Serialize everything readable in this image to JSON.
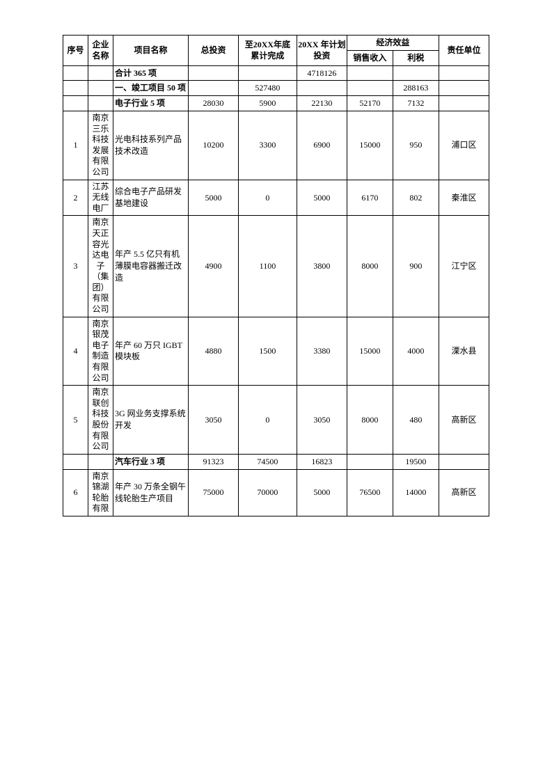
{
  "headers": {
    "seq": "序号",
    "company": "企业名称",
    "project": "项目名称",
    "totalInvest": "总投资",
    "complete": "至20XX年底\n累计完成",
    "planInvest": "20XX 年计划投资",
    "benefit": "经济效益",
    "sales": "销售收入",
    "tax": "利税",
    "responsible": "责任单位"
  },
  "sections": {
    "total": {
      "label": "合计 365 项",
      "planInvest": "4718126"
    },
    "complete50": {
      "label": "一、竣工项目 50 项",
      "complete": "527480",
      "tax": "288163"
    },
    "electronic": {
      "label": "电子行业 5 项",
      "totalInvest": "28030",
      "complete": "5900",
      "planInvest": "22130",
      "sales": "52170",
      "tax": "7132"
    },
    "auto": {
      "label": "汽车行业 3 项",
      "totalInvest": "91323",
      "complete": "74500",
      "planInvest": "16823",
      "tax": "19500"
    }
  },
  "rows": [
    {
      "seq": "1",
      "company": "南京三乐科技发展有限公司",
      "project": "光电科技系列产品技术改造",
      "totalInvest": "10200",
      "complete": "3300",
      "planInvest": "6900",
      "sales": "15000",
      "tax": "950",
      "responsible": "浦口区"
    },
    {
      "seq": "2",
      "company": "江苏无线电厂",
      "project": "综合电子产品研发基地建设",
      "totalInvest": "5000",
      "complete": "0",
      "planInvest": "5000",
      "sales": "6170",
      "tax": "802",
      "responsible": "秦淮区"
    },
    {
      "seq": "3",
      "company": "南京天正容光达电子（集团）有限公司",
      "project": "年产 5.5 亿只有机薄膜电容器搬迁改造",
      "totalInvest": "4900",
      "complete": "1100",
      "planInvest": "3800",
      "sales": "8000",
      "tax": "900",
      "responsible": "江宁区"
    },
    {
      "seq": "4",
      "company": "南京银茂电子制造有限公司",
      "project": "年产 60 万只 IGBT 模块板",
      "totalInvest": "4880",
      "complete": "1500",
      "planInvest": "3380",
      "sales": "15000",
      "tax": "4000",
      "responsible": "溧水县"
    },
    {
      "seq": "5",
      "company": "南京联创科技股份有限公司",
      "project": "3G 网业务支撑系统开发",
      "totalInvest": "3050",
      "complete": "0",
      "planInvest": "3050",
      "sales": "8000",
      "tax": "480",
      "responsible": "高新区"
    },
    {
      "seq": "6",
      "company": "南京锦湖轮胎有限",
      "project": "年产 30 万条全钢午线轮胎生产项目",
      "totalInvest": "75000",
      "complete": "70000",
      "planInvest": "5000",
      "sales": "76500",
      "tax": "14000",
      "responsible": "高新区"
    }
  ]
}
